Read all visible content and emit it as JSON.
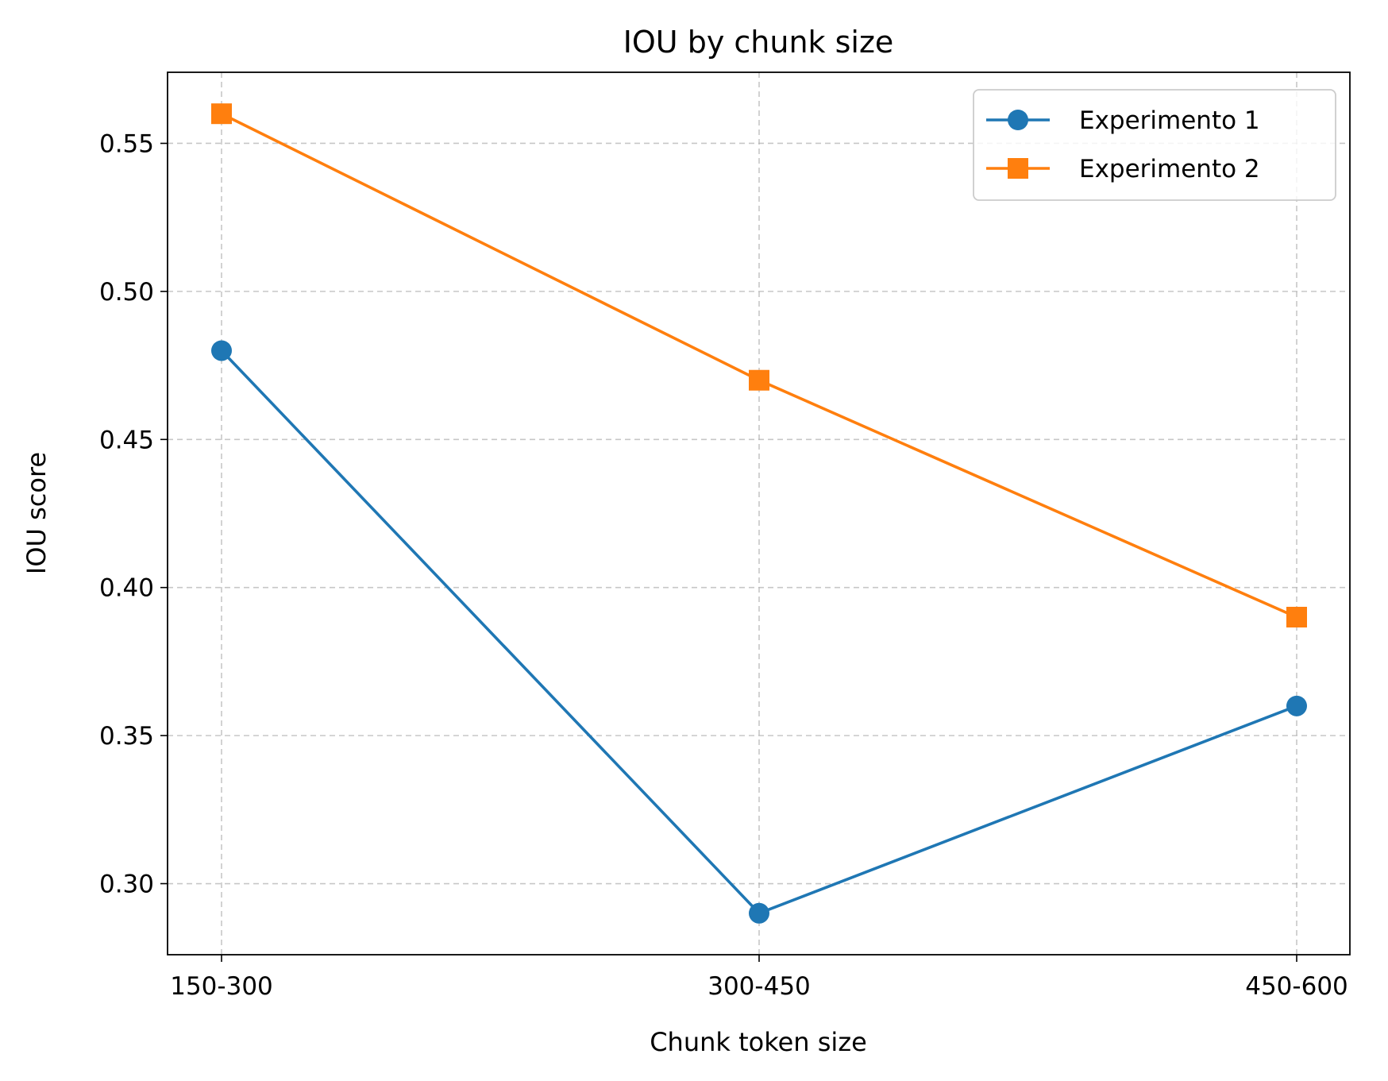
{
  "chart_data": {
    "type": "line",
    "title": "IOU by chunk size",
    "xlabel": "Chunk token size",
    "ylabel": "IOU score",
    "categories": [
      "150-300",
      "300-450",
      "450-600"
    ],
    "ylim": [
      0.276,
      0.574
    ],
    "yticks": [
      0.3,
      0.35,
      0.4,
      0.45,
      0.5,
      0.55
    ],
    "ytick_labels": [
      "0.30",
      "0.35",
      "0.40",
      "0.45",
      "0.50",
      "0.55"
    ],
    "grid": true,
    "legend_position": "top-right",
    "series": [
      {
        "name": "Experimento 1",
        "values": [
          0.48,
          0.29,
          0.36
        ],
        "color": "#1f77b4",
        "marker": "circle"
      },
      {
        "name": "Experimento 2",
        "values": [
          0.56,
          0.47,
          0.39
        ],
        "color": "#ff7f0e",
        "marker": "square"
      }
    ]
  }
}
